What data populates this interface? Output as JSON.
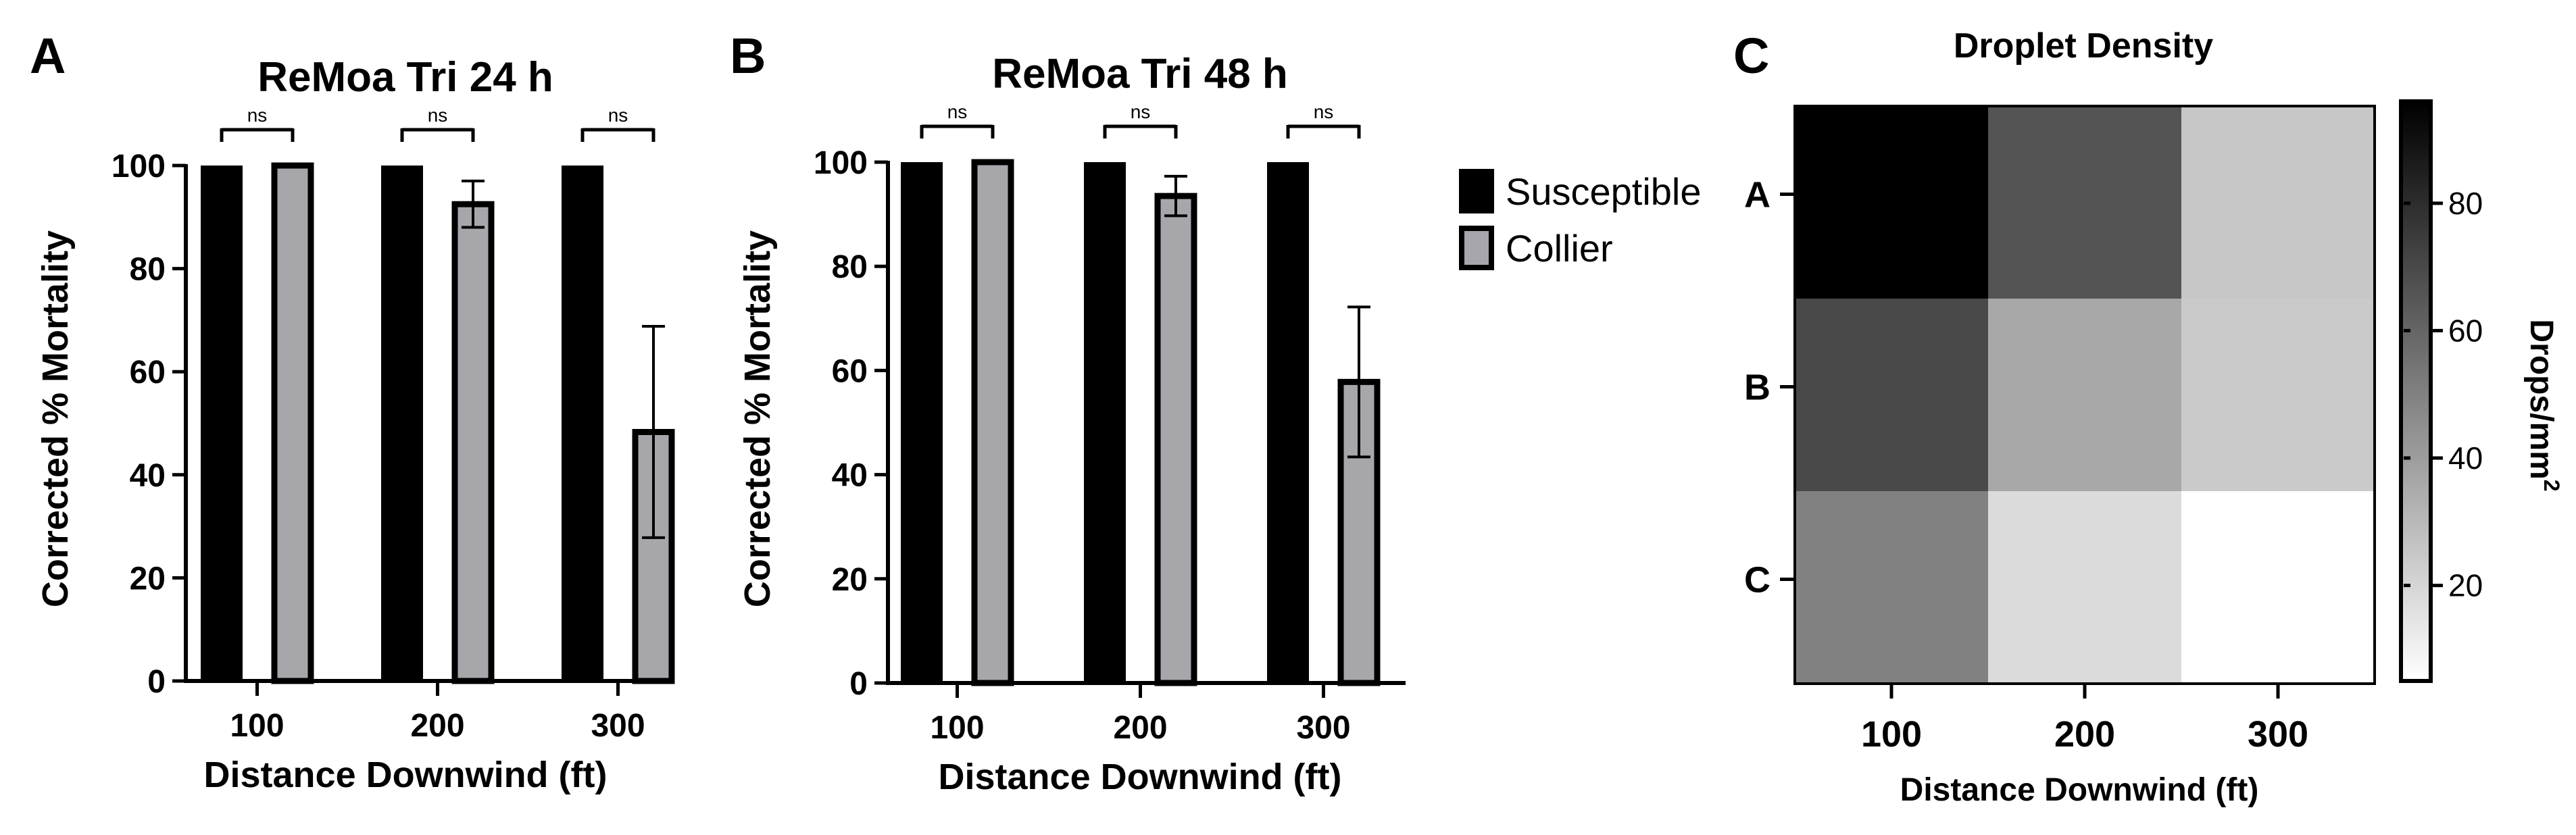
{
  "chart_data": [
    {
      "panel": "A",
      "type": "bar",
      "title": "ReMoa Tri 24 h",
      "xlabel": "Distance Downwind (ft)",
      "ylabel": "Corrected % Mortality",
      "ylim": [
        0,
        100
      ],
      "yticks": [
        0,
        20,
        40,
        60,
        80,
        100
      ],
      "categories": [
        "100",
        "200",
        "300"
      ],
      "series": [
        {
          "name": "Susceptible",
          "values": [
            100,
            100,
            100
          ],
          "error": [
            0,
            0,
            0
          ],
          "color": "#000000"
        },
        {
          "name": "Collier",
          "values": [
            100,
            92.5,
            48.3
          ],
          "error": [
            0,
            4.5,
            20.5
          ],
          "color": "#a6a6ab"
        }
      ],
      "significance": [
        "ns",
        "ns",
        "ns"
      ]
    },
    {
      "panel": "B",
      "type": "bar",
      "title": "ReMoa Tri 48 h",
      "xlabel": "Distance Downwind (ft)",
      "ylabel": "Corrected % Mortality",
      "ylim": [
        0,
        100
      ],
      "yticks": [
        0,
        20,
        40,
        60,
        80,
        100
      ],
      "categories": [
        "100",
        "200",
        "300"
      ],
      "series": [
        {
          "name": "Susceptible",
          "values": [
            100,
            100,
            100
          ],
          "error": [
            0,
            0,
            0
          ],
          "color": "#000000"
        },
        {
          "name": "Collier",
          "values": [
            100,
            93.5,
            57.8
          ],
          "error": [
            0,
            3.8,
            14.4
          ],
          "color": "#a6a6ab"
        }
      ],
      "significance": [
        "ns",
        "ns",
        "ns"
      ]
    },
    {
      "panel": "C",
      "type": "heatmap",
      "title": "Droplet Density",
      "xlabel": "Distance Downwind (ft)",
      "x_categories": [
        "100",
        "200",
        "300"
      ],
      "y_categories": [
        "A",
        "B",
        "C"
      ],
      "values": [
        [
          96,
          66,
          25
        ],
        [
          70,
          36,
          24
        ],
        [
          50,
          18,
          5
        ]
      ],
      "colorbar": {
        "label": "Drops/mm",
        "label_superscript": "2",
        "ticks": [
          20,
          40,
          60,
          80
        ],
        "range": [
          5,
          96
        ],
        "low_color": "#ffffff",
        "high_color": "#000000"
      }
    }
  ],
  "legend": [
    {
      "label": "Susceptible",
      "color": "#000000"
    },
    {
      "label": "Collier",
      "color": "#a6a6ab"
    }
  ],
  "panel_letters": [
    "A",
    "B",
    "C"
  ]
}
